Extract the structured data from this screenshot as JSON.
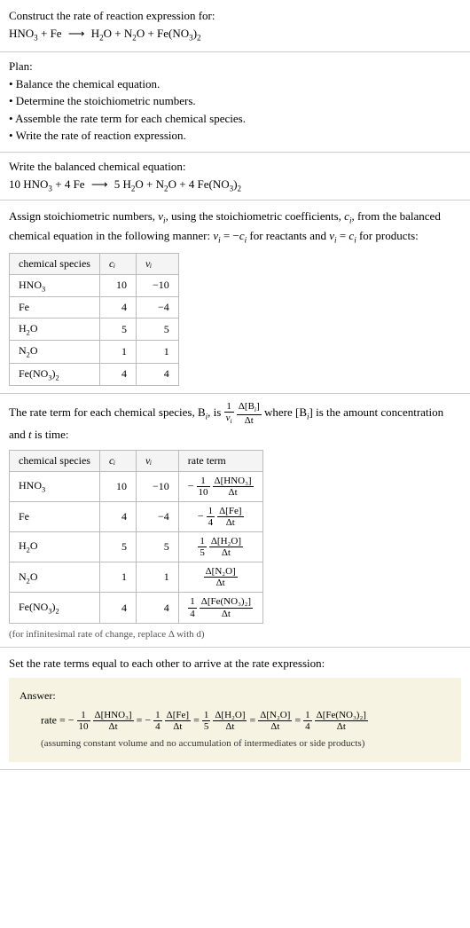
{
  "sec1": {
    "title": "Construct the rate of reaction expression for:",
    "eq_lhs1": "HNO",
    "eq_lhs1_sub": "3",
    "eq_lhs2": "Fe",
    "eq_rhs1": "H",
    "eq_rhs1_sub": "2",
    "eq_rhs1b": "O",
    "eq_rhs2": "N",
    "eq_rhs2_sub": "2",
    "eq_rhs2b": "O",
    "eq_rhs3": "Fe(NO",
    "eq_rhs3_sub": "3",
    "eq_rhs3b": ")",
    "eq_rhs3_sub2": "2",
    "arrow": "⟶"
  },
  "sec2": {
    "title": "Plan:",
    "b1": "• Balance the chemical equation.",
    "b2": "• Determine the stoichiometric numbers.",
    "b3": "• Assemble the rate term for each chemical species.",
    "b4": "• Write the rate of reaction expression."
  },
  "sec3": {
    "title": "Write the balanced chemical equation:",
    "c1": "10 HNO",
    "c1s": "3",
    "c2": "4 Fe",
    "c3": "5 H",
    "c3s": "2",
    "c3b": "O",
    "c4": "N",
    "c4s": "2",
    "c4b": "O",
    "c5": "4 Fe(NO",
    "c5s": "3",
    "c5b": ")",
    "c5s2": "2",
    "arrow": "⟶"
  },
  "sec4": {
    "para_a": "Assign stoichiometric numbers, ",
    "nu_i": "ν",
    "nu_sub": "i",
    "para_b": ", using the stoichiometric coefficients, ",
    "c_i": "c",
    "c_sub": "i",
    "para_c": ", from the balanced chemical equation in the following manner: ",
    "rel1a": "ν",
    "rel1b": " = −",
    "rel1c": "c",
    "para_d": " for reactants and ",
    "rel2a": "ν",
    "rel2b": " = ",
    "rel2c": "c",
    "para_e": " for products:",
    "table": {
      "h1": "chemical species",
      "h2": "cᵢ",
      "h3": "νᵢ",
      "r1": {
        "sp": "HNO",
        "sps": "3",
        "ci": "10",
        "vi": "−10"
      },
      "r2": {
        "sp": "Fe",
        "ci": "4",
        "vi": "−4"
      },
      "r3": {
        "sp": "H",
        "sps": "2",
        "spb": "O",
        "ci": "5",
        "vi": "5"
      },
      "r4": {
        "sp": "N",
        "sps": "2",
        "spb": "O",
        "ci": "1",
        "vi": "1"
      },
      "r5": {
        "sp": "Fe(NO",
        "sps": "3",
        "spb": ")",
        "sps2": "2",
        "ci": "4",
        "vi": "4"
      }
    }
  },
  "sec5": {
    "para_a": "The rate term for each chemical species, B",
    "para_b": ", is ",
    "frac1_num": "1",
    "frac1_den_a": "ν",
    "frac2_num_a": "Δ[B",
    "frac2_num_b": "]",
    "frac2_den": "Δt",
    "para_c": " where [B",
    "para_d": "] is the amount concentration and ",
    "t": "t",
    "para_e": " is time:",
    "table": {
      "h1": "chemical species",
      "h2": "cᵢ",
      "h3": "νᵢ",
      "h4": "rate term",
      "r1": {
        "sp": "HNO",
        "sps": "3",
        "ci": "10",
        "vi": "−10",
        "sign": "−",
        "fn1": "1",
        "fd1": "10",
        "fn2": "Δ[HNO₃]",
        "fd2": "Δt"
      },
      "r2": {
        "sp": "Fe",
        "ci": "4",
        "vi": "−4",
        "sign": "−",
        "fn1": "1",
        "fd1": "4",
        "fn2": "Δ[Fe]",
        "fd2": "Δt"
      },
      "r3": {
        "sp": "H",
        "sps": "2",
        "spb": "O",
        "ci": "5",
        "vi": "5",
        "sign": "",
        "fn1": "1",
        "fd1": "5",
        "fn2": "Δ[H₂O]",
        "fd2": "Δt"
      },
      "r4": {
        "sp": "N",
        "sps": "2",
        "spb": "O",
        "ci": "1",
        "vi": "1",
        "sign": "",
        "fn1": "",
        "fd1": "",
        "fn2": "Δ[N₂O]",
        "fd2": "Δt"
      },
      "r5": {
        "sp": "Fe(NO",
        "sps": "3",
        "spb": ")",
        "sps2": "2",
        "ci": "4",
        "vi": "4",
        "sign": "",
        "fn1": "1",
        "fd1": "4",
        "fn2": "Δ[Fe(NO₃)₂]",
        "fd2": "Δt"
      }
    },
    "note": "(for infinitesimal rate of change, replace Δ with d)"
  },
  "sec6": {
    "title": "Set the rate terms equal to each other to arrive at the rate expression:",
    "answer_label": "Answer:",
    "rate_label": "rate = ",
    "t1": {
      "sign": "−",
      "n1": "1",
      "d1": "10",
      "n2": "Δ[HNO₃]",
      "d2": "Δt"
    },
    "t2": {
      "sign": "−",
      "n1": "1",
      "d1": "4",
      "n2": "Δ[Fe]",
      "d2": "Δt"
    },
    "t3": {
      "sign": "",
      "n1": "1",
      "d1": "5",
      "n2": "Δ[H₂O]",
      "d2": "Δt"
    },
    "t4": {
      "sign": "",
      "n1": "",
      "d1": "",
      "n2": "Δ[N₂O]",
      "d2": "Δt"
    },
    "t5": {
      "sign": "",
      "n1": "1",
      "d1": "4",
      "n2": "Δ[Fe(NO₃)₂]",
      "d2": "Δt"
    },
    "eq": " = ",
    "assume": "(assuming constant volume and no accumulation of intermediates or side products)"
  }
}
